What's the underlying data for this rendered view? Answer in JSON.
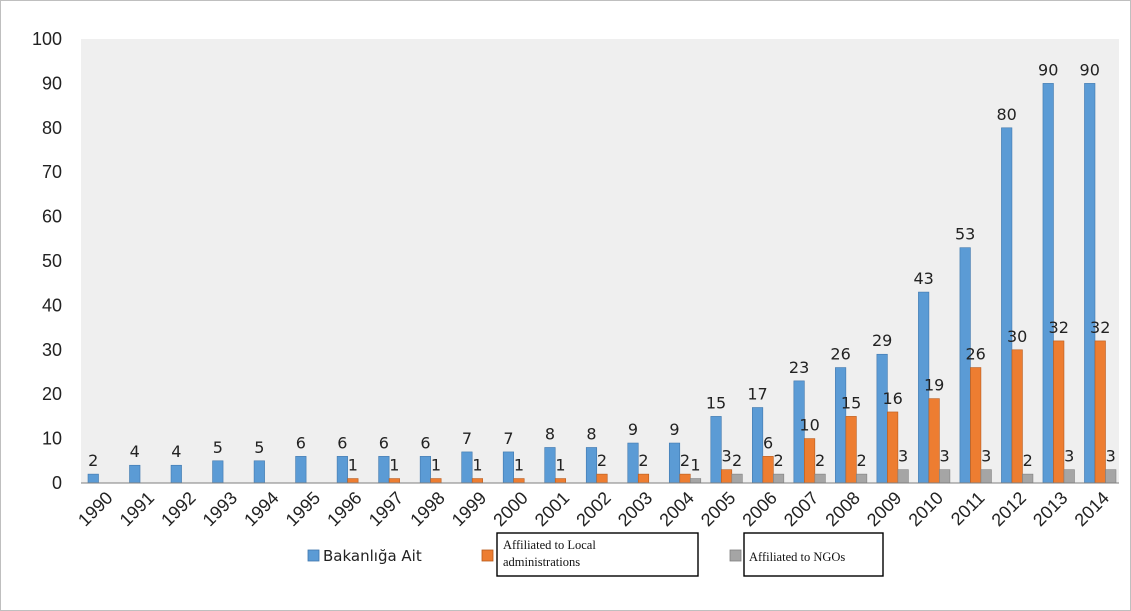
{
  "chart_data": {
    "type": "bar",
    "categories": [
      "1990",
      "1991",
      "1992",
      "1993",
      "1994",
      "1995",
      "1996",
      "1997",
      "1998",
      "1999",
      "2000",
      "2001",
      "2002",
      "2003",
      "2004",
      "2005",
      "2006",
      "2007",
      "2008",
      "2009",
      "2010",
      "2011",
      "2012",
      "2013",
      "2014"
    ],
    "series": [
      {
        "name": "Bakanlığa Ait",
        "color": "#5b9bd5",
        "values": [
          2,
          4,
          4,
          5,
          5,
          6,
          6,
          6,
          6,
          7,
          7,
          8,
          8,
          9,
          9,
          15,
          17,
          23,
          26,
          29,
          43,
          53,
          80,
          90,
          90
        ]
      },
      {
        "name": "Affiliated to Local administrations",
        "color": "#ed7d31",
        "values": [
          0,
          0,
          0,
          0,
          0,
          0,
          1,
          1,
          1,
          1,
          1,
          1,
          2,
          2,
          2,
          3,
          6,
          10,
          15,
          16,
          19,
          26,
          30,
          32,
          32
        ]
      },
      {
        "name": "Affiliated to NGOs",
        "color": "#a5a5a5",
        "values": [
          0,
          0,
          0,
          0,
          0,
          0,
          0,
          0,
          0,
          0,
          0,
          0,
          0,
          0,
          1,
          2,
          2,
          2,
          2,
          3,
          3,
          3,
          2,
          3,
          3
        ]
      }
    ],
    "data_labels": [
      [
        "2",
        "4",
        "4",
        "5",
        "5",
        "6",
        "6",
        "6",
        "6",
        "7",
        "7",
        "8",
        "8",
        "9",
        "9",
        "15",
        "17",
        "23",
        "26",
        "29",
        "43",
        "53",
        "80",
        "90",
        "90"
      ],
      [
        "",
        "",
        "",
        "",
        "",
        "",
        "1",
        "1",
        "1",
        "1",
        "1",
        "1",
        "2",
        "2",
        "2",
        "3",
        "6",
        "10",
        "15",
        "16",
        "19",
        "26",
        "30",
        "32",
        "32"
      ],
      [
        "",
        "",
        "",
        "",
        "",
        "",
        "",
        "",
        "",
        "",
        "",
        "",
        "",
        "",
        "1",
        "2",
        "2",
        "2",
        "2",
        "3",
        "3",
        "3",
        "2",
        "3",
        "3"
      ]
    ],
    "yticks": [
      "0",
      "10",
      "20",
      "30",
      "40",
      "50",
      "60",
      "70",
      "80",
      "90",
      "100"
    ],
    "ylim": [
      0,
      100
    ],
    "grid": false,
    "legend_position": "bottom",
    "plot_background": "#efefef",
    "title": "",
    "xlabel": "",
    "ylabel": ""
  }
}
